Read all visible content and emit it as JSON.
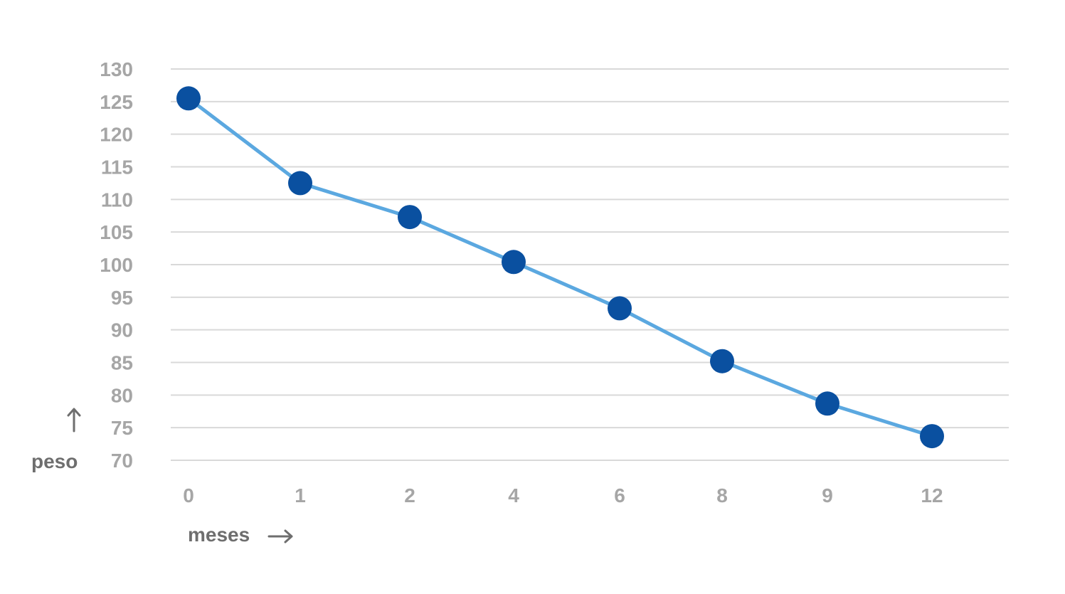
{
  "chart_data": {
    "type": "line",
    "title": "",
    "xlabel": "meses",
    "ylabel": "peso",
    "categories": [
      "0",
      "1",
      "2",
      "4",
      "6",
      "8",
      "9",
      "12"
    ],
    "series": [
      {
        "values": [
          125.5,
          112.5,
          107.3,
          100.4,
          93.3,
          85.2,
          78.7,
          73.7
        ],
        "line_color": "#5ba8e0",
        "marker_color": "#0a50a0"
      }
    ],
    "y_ticks": [
      "130",
      "125",
      "120",
      "115",
      "110",
      "105",
      "100",
      "95",
      "90",
      "85",
      "80",
      "75",
      "70"
    ],
    "ylim": [
      70,
      130
    ],
    "y_step": 5,
    "grid": true,
    "legend": "none",
    "x_arrow_icon": "right-arrow-icon",
    "y_arrow_icon": "up-arrow-icon"
  }
}
